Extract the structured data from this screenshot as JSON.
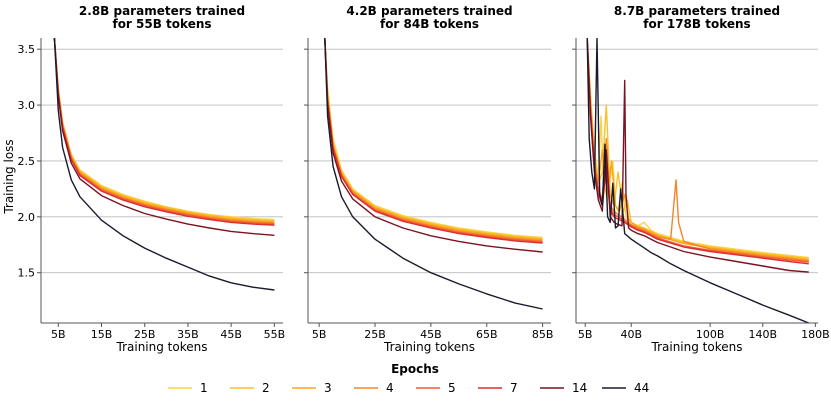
{
  "chart_data": [
    {
      "type": "line",
      "title": "2.8B parameters trained\nfor 55B tokens",
      "xlabel": "Training tokens",
      "ylabel": "Training loss",
      "xlim": [
        1,
        57
      ],
      "ylim": [
        1.05,
        3.6
      ],
      "xticks": [
        5,
        15,
        25,
        35,
        45,
        55
      ],
      "xtick_labels": [
        "5B",
        "15B",
        "25B",
        "35B",
        "45B",
        "55B"
      ],
      "yticks": [
        1.5,
        2.0,
        2.5,
        3.0,
        3.5
      ],
      "ytick_labels": [
        "1.5",
        "2.0",
        "2.5",
        "3.0",
        "3.5"
      ],
      "grid": "horizontal",
      "series": [
        {
          "name": "1",
          "x": [
            4.1,
            5,
            6,
            8,
            10,
            15,
            20,
            25,
            30,
            35,
            40,
            45,
            50,
            55
          ],
          "y": [
            3.6,
            3.15,
            2.85,
            2.56,
            2.42,
            2.28,
            2.2,
            2.14,
            2.09,
            2.05,
            2.02,
            2.0,
            1.985,
            1.975
          ]
        },
        {
          "name": "2",
          "x": [
            4.1,
            5,
            6,
            8,
            10,
            15,
            20,
            25,
            30,
            35,
            40,
            45,
            50,
            55
          ],
          "y": [
            3.6,
            3.14,
            2.84,
            2.55,
            2.41,
            2.27,
            2.19,
            2.13,
            2.085,
            2.045,
            2.015,
            1.99,
            1.975,
            1.965
          ]
        },
        {
          "name": "3",
          "x": [
            4.1,
            5,
            6,
            8,
            10,
            15,
            20,
            25,
            30,
            35,
            40,
            45,
            50,
            55
          ],
          "y": [
            3.6,
            3.13,
            2.83,
            2.54,
            2.4,
            2.26,
            2.18,
            2.12,
            2.075,
            2.035,
            2.005,
            1.98,
            1.965,
            1.955
          ]
        },
        {
          "name": "4",
          "x": [
            4.1,
            5,
            6,
            8,
            10,
            15,
            20,
            25,
            30,
            35,
            40,
            45,
            50,
            55
          ],
          "y": [
            3.6,
            3.12,
            2.82,
            2.53,
            2.39,
            2.25,
            2.17,
            2.11,
            2.065,
            2.025,
            1.995,
            1.97,
            1.955,
            1.945
          ]
        },
        {
          "name": "5",
          "x": [
            4.1,
            5,
            6,
            8,
            10,
            15,
            20,
            25,
            30,
            35,
            40,
            45,
            50,
            55
          ],
          "y": [
            3.6,
            3.11,
            2.81,
            2.52,
            2.38,
            2.24,
            2.16,
            2.1,
            2.055,
            2.015,
            1.985,
            1.96,
            1.945,
            1.935
          ]
        },
        {
          "name": "7",
          "x": [
            4.1,
            5,
            6,
            8,
            10,
            15,
            20,
            25,
            30,
            35,
            40,
            45,
            50,
            55
          ],
          "y": [
            3.6,
            3.1,
            2.8,
            2.51,
            2.37,
            2.23,
            2.15,
            2.09,
            2.045,
            2.005,
            1.975,
            1.95,
            1.935,
            1.925
          ]
        },
        {
          "name": "14",
          "x": [
            4.1,
            5,
            6,
            8,
            10,
            15,
            20,
            25,
            30,
            35,
            40,
            45,
            50,
            55
          ],
          "y": [
            3.6,
            3.08,
            2.77,
            2.48,
            2.34,
            2.19,
            2.1,
            2.03,
            1.98,
            1.935,
            1.9,
            1.87,
            1.85,
            1.835
          ]
        },
        {
          "name": "44",
          "x": [
            4.1,
            5,
            6,
            8,
            10,
            15,
            20,
            25,
            30,
            35,
            40,
            45,
            50,
            55
          ],
          "y": [
            3.6,
            2.95,
            2.62,
            2.33,
            2.18,
            1.97,
            1.83,
            1.72,
            1.63,
            1.55,
            1.47,
            1.41,
            1.37,
            1.345
          ]
        }
      ]
    },
    {
      "type": "line",
      "title": "4.2B parameters trained\nfor 84B tokens",
      "xlabel": "Training tokens",
      "ylabel": "",
      "xlim": [
        1,
        88
      ],
      "ylim": [
        1.05,
        3.6
      ],
      "xticks": [
        5,
        25,
        45,
        65,
        85
      ],
      "xtick_labels": [
        "5B",
        "25B",
        "45B",
        "65B",
        "85B"
      ],
      "yticks": [
        1.5,
        2.0,
        2.5,
        3.0,
        3.5
      ],
      "ytick_labels": [],
      "grid": "horizontal",
      "series": [
        {
          "name": "1",
          "x": [
            7.0,
            8,
            10,
            13,
            17,
            25,
            35,
            45,
            55,
            65,
            75,
            85
          ],
          "y": [
            3.6,
            3.15,
            2.7,
            2.42,
            2.25,
            2.1,
            2.01,
            1.95,
            1.9,
            1.865,
            1.835,
            1.815
          ]
        },
        {
          "name": "2",
          "x": [
            7.0,
            8,
            10,
            13,
            17,
            25,
            35,
            45,
            55,
            65,
            75,
            85
          ],
          "y": [
            3.6,
            3.1,
            2.66,
            2.4,
            2.24,
            2.09,
            2.0,
            1.94,
            1.89,
            1.855,
            1.825,
            1.805
          ]
        },
        {
          "name": "3",
          "x": [
            7.0,
            8,
            10,
            13,
            17,
            25,
            35,
            45,
            55,
            65,
            75,
            85
          ],
          "y": [
            3.6,
            3.08,
            2.64,
            2.39,
            2.23,
            2.08,
            1.99,
            1.93,
            1.88,
            1.845,
            1.815,
            1.795
          ]
        },
        {
          "name": "4",
          "x": [
            7.0,
            8,
            10,
            13,
            17,
            25,
            35,
            45,
            55,
            65,
            75,
            85
          ],
          "y": [
            3.6,
            3.06,
            2.63,
            2.38,
            2.22,
            2.07,
            1.98,
            1.92,
            1.87,
            1.835,
            1.805,
            1.785
          ]
        },
        {
          "name": "5",
          "x": [
            7.0,
            8,
            10,
            13,
            17,
            25,
            35,
            45,
            55,
            65,
            75,
            85
          ],
          "y": [
            3.6,
            3.05,
            2.62,
            2.37,
            2.21,
            2.06,
            1.97,
            1.91,
            1.86,
            1.825,
            1.795,
            1.775
          ]
        },
        {
          "name": "7",
          "x": [
            7.0,
            8,
            10,
            13,
            17,
            25,
            35,
            45,
            55,
            65,
            75,
            85
          ],
          "y": [
            3.6,
            3.04,
            2.61,
            2.36,
            2.2,
            2.05,
            1.96,
            1.9,
            1.85,
            1.815,
            1.785,
            1.765
          ]
        },
        {
          "name": "14",
          "x": [
            7.0,
            8,
            10,
            13,
            17,
            25,
            35,
            45,
            55,
            65,
            75,
            85
          ],
          "y": [
            3.6,
            3.0,
            2.57,
            2.32,
            2.16,
            2.0,
            1.9,
            1.83,
            1.78,
            1.74,
            1.71,
            1.685
          ]
        },
        {
          "name": "44",
          "x": [
            7.0,
            8,
            10,
            13,
            17,
            25,
            35,
            45,
            55,
            65,
            75,
            85
          ],
          "y": [
            3.6,
            2.9,
            2.45,
            2.18,
            2.0,
            1.8,
            1.63,
            1.5,
            1.4,
            1.31,
            1.23,
            1.175
          ]
        }
      ]
    },
    {
      "type": "line",
      "title": "8.7B parameters trained\nfor 178B tokens",
      "xlabel": "Training tokens",
      "ylabel": "",
      "xlim": [
        -2,
        182
      ],
      "ylim": [
        1.05,
        3.6
      ],
      "xticks": [
        5,
        40,
        100,
        140,
        180
      ],
      "xtick_labels": [
        "5B",
        "40B",
        "100B",
        "140B",
        "180B"
      ],
      "yticks": [
        1.5,
        2.0,
        2.5,
        3.0,
        3.5
      ],
      "ytick_labels": [],
      "grid": "horizontal",
      "series": [
        {
          "name": "1",
          "x": [
            6.5,
            9,
            12,
            15,
            17,
            19,
            22,
            26,
            28,
            30,
            33,
            36,
            40,
            45,
            50,
            55,
            60,
            80,
            100,
            120,
            140,
            160,
            175
          ],
          "y": [
            3.6,
            3.1,
            2.6,
            2.35,
            2.9,
            2.3,
            2.15,
            2.5,
            2.1,
            2.05,
            2.3,
            2.0,
            1.95,
            1.92,
            1.95,
            1.88,
            1.85,
            1.78,
            1.74,
            1.71,
            1.68,
            1.655,
            1.635
          ]
        },
        {
          "name": "2",
          "x": [
            6.5,
            9,
            12,
            15,
            18,
            21,
            24,
            27,
            30,
            34,
            37,
            40,
            45,
            50,
            55,
            60,
            80,
            100,
            120,
            140,
            160,
            175
          ],
          "y": [
            3.6,
            3.05,
            2.55,
            2.3,
            2.4,
            3.0,
            2.2,
            2.1,
            2.4,
            2.05,
            2.15,
            1.95,
            1.92,
            1.9,
            1.87,
            1.84,
            1.77,
            1.73,
            1.7,
            1.67,
            1.645,
            1.625
          ]
        },
        {
          "name": "3",
          "x": [
            6.5,
            9,
            12,
            15,
            18,
            22,
            25,
            28,
            31,
            35,
            38,
            40,
            45,
            50,
            55,
            60,
            80,
            100,
            120,
            140,
            160,
            175
          ],
          "y": [
            3.6,
            3.0,
            2.5,
            2.3,
            2.6,
            2.2,
            2.5,
            2.1,
            2.05,
            2.2,
            1.98,
            1.95,
            1.91,
            1.89,
            1.86,
            1.83,
            1.76,
            1.72,
            1.69,
            1.66,
            1.635,
            1.615
          ]
        },
        {
          "name": "4",
          "x": [
            6.5,
            9,
            12,
            15,
            18,
            21,
            24,
            27,
            30,
            35,
            40,
            45,
            50,
            55,
            60,
            70,
            74,
            76,
            80,
            100,
            120,
            140,
            160,
            175
          ],
          "y": [
            3.6,
            3.0,
            2.5,
            2.25,
            2.15,
            2.7,
            2.1,
            2.05,
            2.02,
            1.98,
            1.93,
            1.9,
            1.88,
            1.85,
            1.82,
            1.8,
            2.33,
            1.95,
            1.78,
            1.71,
            1.68,
            1.65,
            1.625,
            1.605
          ]
        },
        {
          "name": "5",
          "x": [
            6.5,
            9,
            12,
            15,
            18,
            21,
            24,
            27,
            30,
            35,
            40,
            45,
            50,
            55,
            60,
            80,
            100,
            120,
            140,
            160,
            175
          ],
          "y": [
            3.6,
            2.95,
            2.45,
            2.25,
            2.15,
            2.55,
            2.08,
            2.02,
            2.0,
            1.96,
            1.92,
            1.89,
            1.87,
            1.84,
            1.81,
            1.74,
            1.7,
            1.67,
            1.64,
            1.615,
            1.595
          ]
        },
        {
          "name": "7",
          "x": [
            6.5,
            9,
            12,
            15,
            18,
            21,
            24,
            27,
            30,
            35,
            40,
            45,
            50,
            55,
            60,
            80,
            100,
            120,
            140,
            160,
            175
          ],
          "y": [
            3.6,
            2.95,
            2.45,
            2.2,
            2.1,
            2.45,
            2.05,
            2.0,
            1.98,
            1.95,
            1.91,
            1.88,
            1.86,
            1.83,
            1.8,
            1.73,
            1.69,
            1.66,
            1.63,
            1.6,
            1.58
          ]
        },
        {
          "name": "14",
          "x": [
            6.5,
            9,
            12,
            15,
            18,
            21,
            24,
            27,
            30,
            33,
            35,
            36,
            38,
            40,
            45,
            50,
            55,
            60,
            80,
            100,
            120,
            140,
            160,
            175
          ],
          "y": [
            3.6,
            2.9,
            2.4,
            2.15,
            2.05,
            2.6,
            2.0,
            1.95,
            1.93,
            1.92,
            3.22,
            2.2,
            1.9,
            1.88,
            1.85,
            1.83,
            1.8,
            1.77,
            1.69,
            1.64,
            1.6,
            1.56,
            1.52,
            1.505
          ]
        },
        {
          "name": "44",
          "x": [
            6.5,
            8,
            10,
            12,
            14,
            16,
            18,
            20,
            22,
            24,
            26,
            28,
            30,
            32,
            35,
            40,
            45,
            50,
            55,
            60,
            70,
            80,
            100,
            120,
            140,
            160,
            175
          ],
          "y": [
            3.6,
            2.7,
            2.4,
            2.25,
            3.6,
            2.2,
            2.1,
            2.65,
            2.0,
            1.95,
            2.3,
            1.9,
            1.92,
            2.25,
            1.85,
            1.8,
            1.76,
            1.72,
            1.68,
            1.65,
            1.58,
            1.52,
            1.41,
            1.31,
            1.21,
            1.12,
            1.05
          ]
        }
      ]
    }
  ],
  "legend": {
    "title": "Epochs",
    "placement": "bottom-center",
    "entries": [
      {
        "label": "1",
        "color": "#fbd348"
      },
      {
        "label": "2",
        "color": "#fbbf28"
      },
      {
        "label": "3",
        "color": "#f9a520"
      },
      {
        "label": "4",
        "color": "#f58526"
      },
      {
        "label": "5",
        "color": "#ef5a3c"
      },
      {
        "label": "7",
        "color": "#dd2f2f"
      },
      {
        "label": "14",
        "color": "#7a1420"
      },
      {
        "label": "44",
        "color": "#1a1a2e"
      }
    ]
  },
  "colors": {
    "axis": "#555555",
    "grid": "#bbbbbb"
  }
}
